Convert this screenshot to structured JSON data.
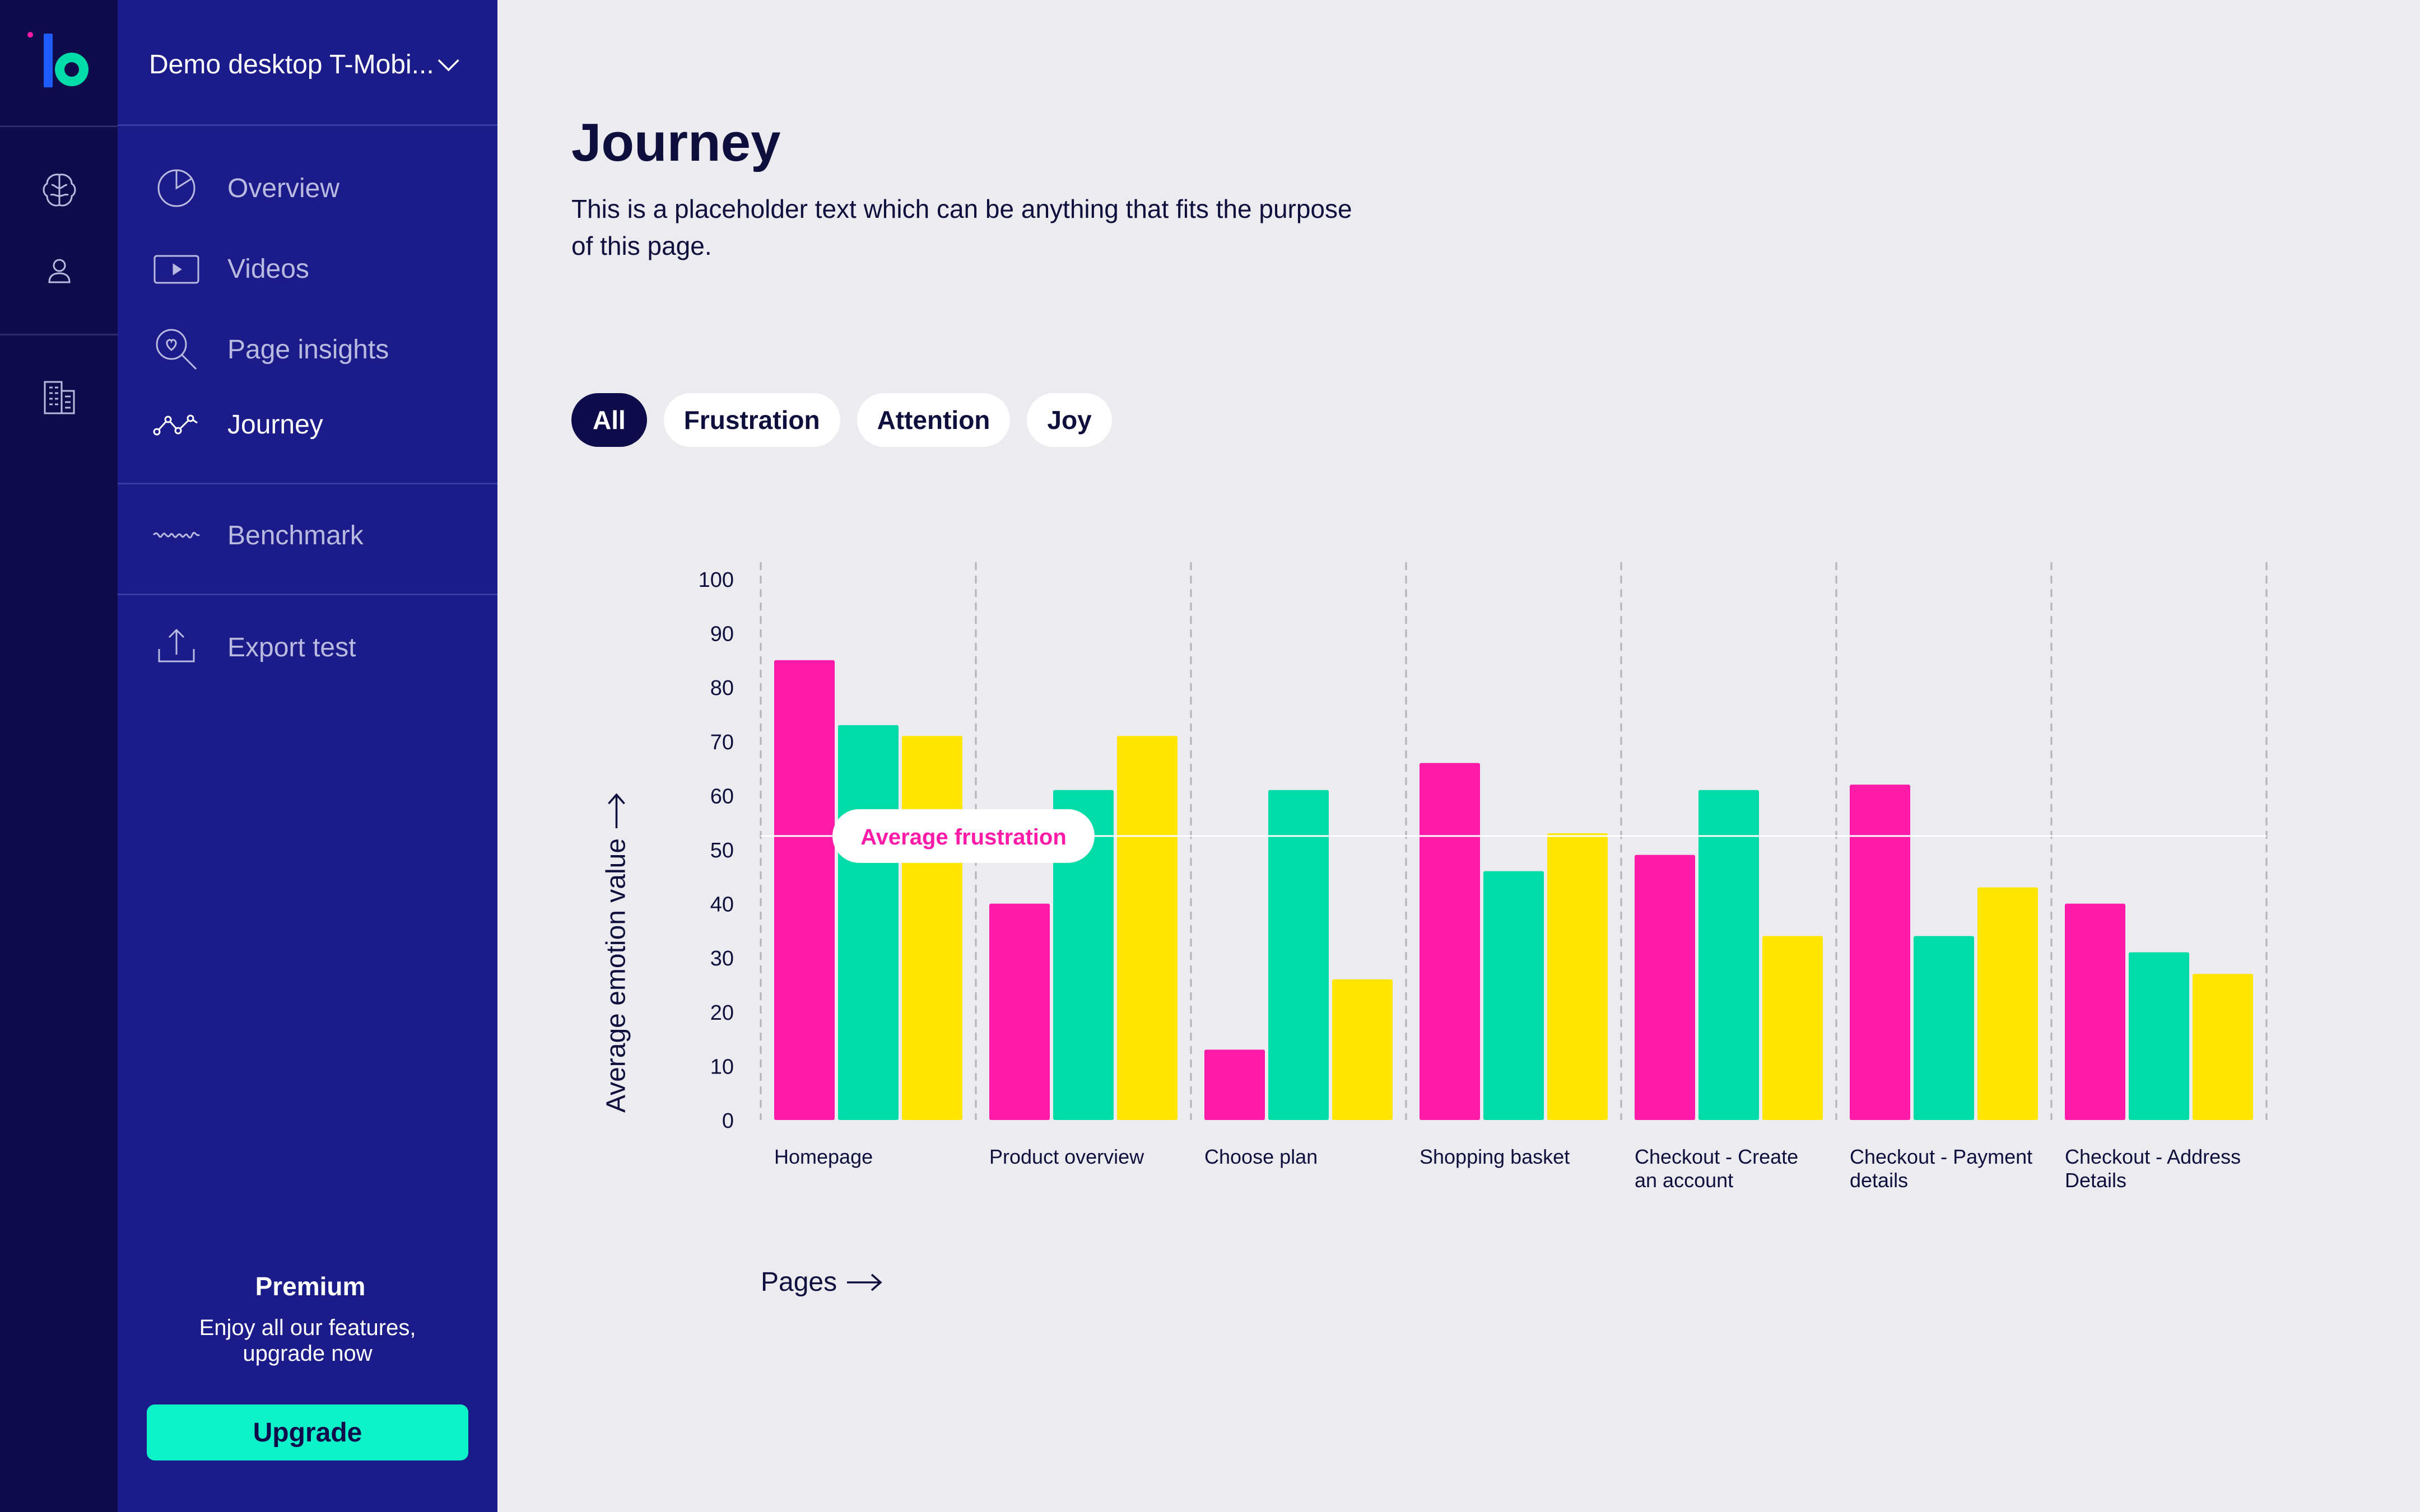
{
  "app": {
    "project_name": "Demo desktop T-Mobi...",
    "brand_colors": {
      "rail": "#0e0c4a",
      "sidebar": "#1b1b8a",
      "accent": "#0df2c8"
    }
  },
  "rail": {
    "items": [
      {
        "icon": "brain-icon"
      },
      {
        "icon": "user-icon"
      },
      {
        "icon": "building-icon"
      }
    ]
  },
  "sidebar": {
    "items": [
      {
        "label": "Overview",
        "icon": "pie-chart-icon"
      },
      {
        "label": "Videos",
        "icon": "video-play-icon"
      },
      {
        "label": "Page insights",
        "icon": "magnifier-heart-icon"
      },
      {
        "label": "Journey",
        "icon": "journey-path-icon",
        "active": true
      },
      {
        "label": "Benchmark",
        "icon": "wave-icon"
      },
      {
        "label": "Export test",
        "icon": "upload-icon"
      }
    ],
    "premium": {
      "title": "Premium",
      "description_line1": "Enjoy all our features,",
      "description_line2": "upgrade now",
      "button_label": "Upgrade"
    }
  },
  "main": {
    "title": "Journey",
    "description": "This is a placeholder text which can be anything that fits the purpose of this page.",
    "filters": [
      "All",
      "Frustration",
      "Attention",
      "Joy"
    ],
    "active_filter": "All",
    "x_axis_title": "Pages",
    "y_axis_title": "Average emotion value"
  },
  "chart_data": {
    "type": "bar",
    "categories": [
      [
        "Homepage"
      ],
      [
        "Product overview"
      ],
      [
        "Choose plan"
      ],
      [
        "Shopping basket"
      ],
      [
        "Checkout - Create",
        "an account"
      ],
      [
        "Checkout - Payment",
        "details"
      ],
      [
        "Checkout - Address",
        "Details"
      ]
    ],
    "series": [
      {
        "color": "#ff1aa8",
        "values": [
          85,
          40,
          13,
          66,
          49,
          62,
          40
        ]
      },
      {
        "color": "#00dba8",
        "values": [
          73,
          61,
          61,
          46,
          61,
          34,
          31
        ]
      },
      {
        "color": "#ffe600",
        "values": [
          71,
          71,
          26,
          53,
          34,
          43,
          27
        ]
      }
    ],
    "ylim": [
      0,
      100
    ],
    "yticks": [
      0,
      10,
      20,
      30,
      40,
      50,
      60,
      70,
      80,
      90,
      100
    ],
    "xlabel": "Pages",
    "ylabel": "Average emotion value",
    "reference_line": {
      "label": "Average frustration",
      "value": 52.5,
      "label_color": "#ff1aa8"
    },
    "grid": "vertical dashed separators"
  }
}
